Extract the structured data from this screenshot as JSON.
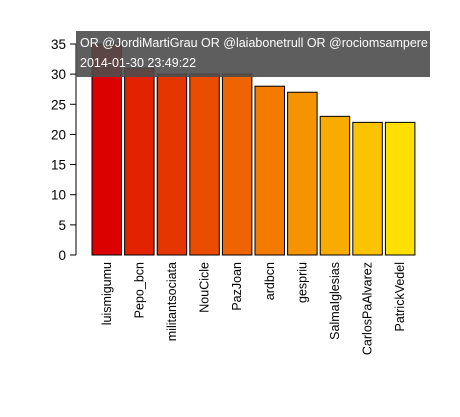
{
  "chart_data": {
    "type": "bar",
    "title": "",
    "xlabel": "",
    "ylabel": "",
    "categories": [
      "luismigumu",
      "Pepo_bcn",
      "militantsociata",
      "NouCicle",
      "PazJoan",
      "ardbcn",
      "gespriu",
      "SalmaIglesias",
      "CarlosPaAlvarez",
      "PatrickVedel"
    ],
    "values": [
      35,
      31,
      30,
      30,
      30,
      28,
      27,
      23,
      22,
      22
    ],
    "colors": [
      "#dd0000",
      "#e32200",
      "#e63600",
      "#ea4d00",
      "#ee6400",
      "#f27b00",
      "#f59300",
      "#f9ab00",
      "#fcc400",
      "#ffe000"
    ],
    "ylim": [
      0,
      35
    ],
    "yticks": [
      0,
      5,
      10,
      15,
      20,
      25,
      30,
      35
    ],
    "grid": false,
    "legend": "none"
  },
  "overlay": {
    "query_text": "OR @JordiMartiGrau OR @laiabonetrull OR @rociomsampere",
    "timestamp": "2014-01-30 23:49:22"
  }
}
